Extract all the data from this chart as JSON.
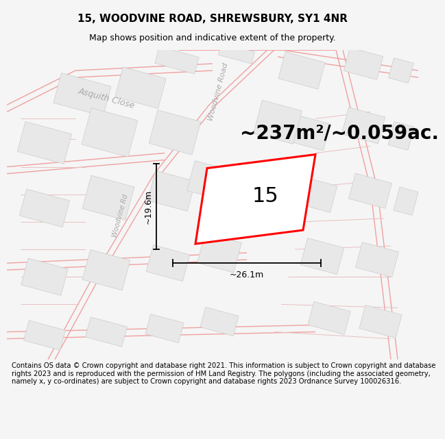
{
  "title": "15, WOODVINE ROAD, SHREWSBURY, SY1 4NR",
  "subtitle": "Map shows position and indicative extent of the property.",
  "area_text": "~237m²/~0.059ac.",
  "label_15": "15",
  "dim_width": "~26.1m",
  "dim_height": "~19.6m",
  "road_label_diag": "Woodvine Road",
  "road_label_vert": "Woodvine Rd",
  "road_label_horiz": "Asquith Close",
  "footer": "Contains OS data © Crown copyright and database right 2021. This information is subject to Crown copyright and database rights 2023 and is reproduced with the permission of HM Land Registry. The polygons (including the associated geometry, namely x, y co-ordinates) are subject to Crown copyright and database rights 2023 Ordnance Survey 100026316.",
  "bg_color": "#f5f5f5",
  "map_bg": "#ffffff",
  "building_color": "#e8e8e8",
  "building_edge": "#cccccc",
  "highlight_color": "#ff0000",
  "road_line_color": "#f0a0a0",
  "parcel_line_color": "#e8c0c0",
  "text_color": "#000000",
  "road_text_color": "#aaaaaa",
  "title_fontsize": 11,
  "subtitle_fontsize": 9,
  "area_fontsize": 20,
  "label_fontsize": 22,
  "dim_fontsize": 9,
  "road_fontsize": 8,
  "footer_fontsize": 7.2
}
